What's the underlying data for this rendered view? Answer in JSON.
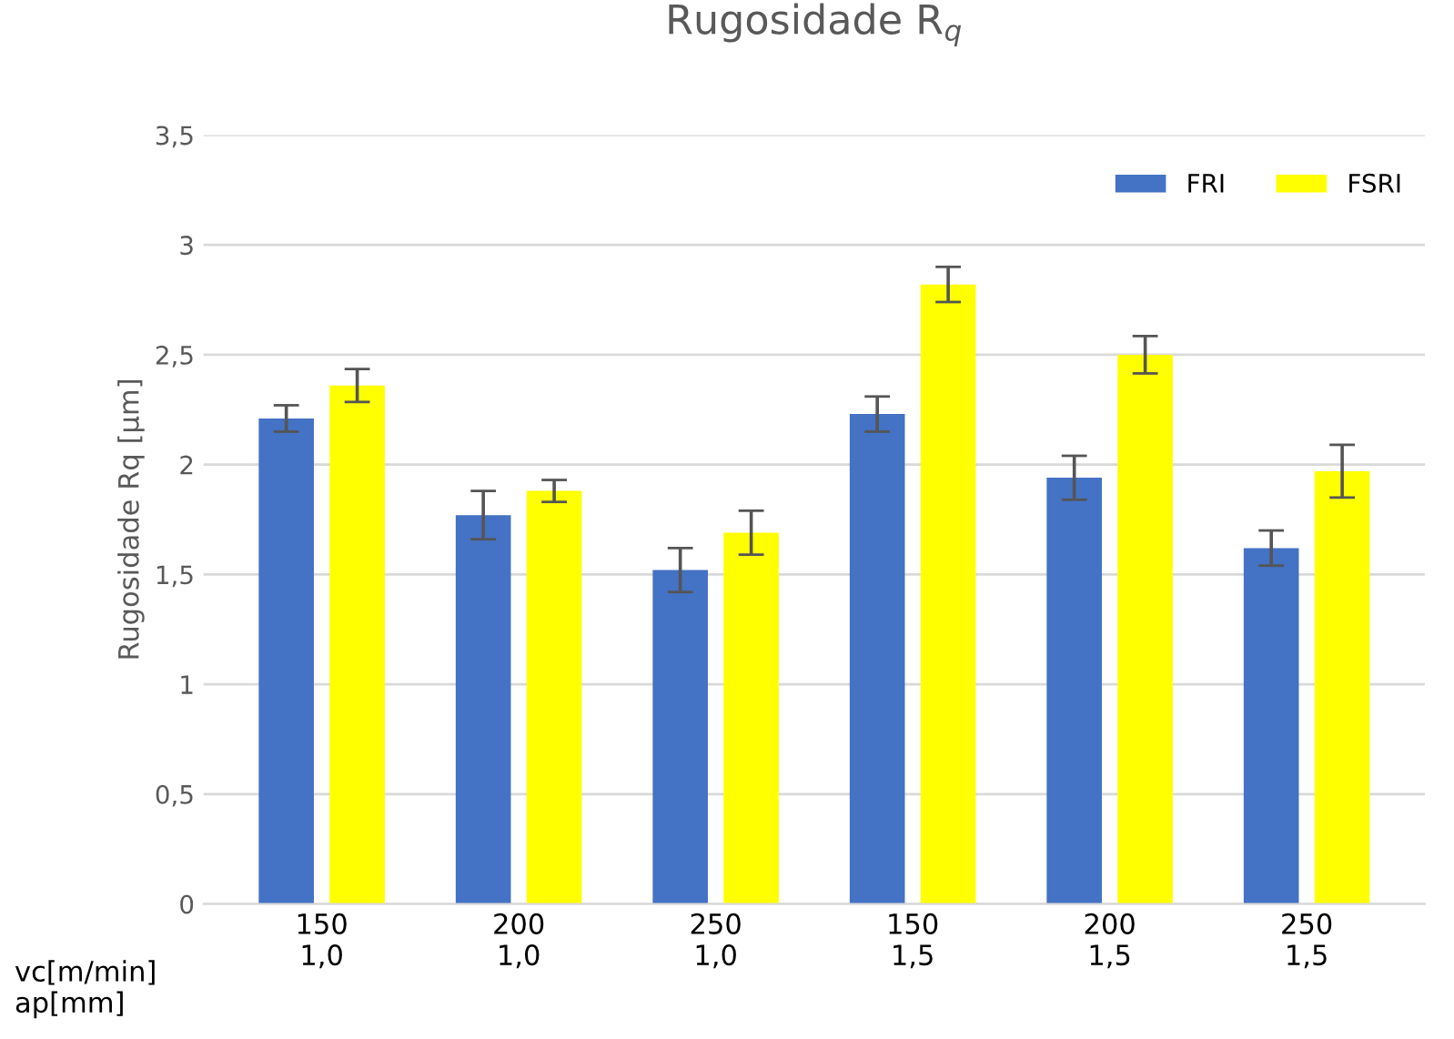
{
  "chart_data": {
    "type": "bar",
    "title": "Rugosidade R$_{q}$",
    "ylabel": "Rugosidade Rq [µm]",
    "categories": [
      "150\n1,0",
      "200\n1,0",
      "250\n1,0",
      "150\n1,5",
      "200\n1,5",
      "250\n1,5"
    ],
    "annotations": [
      "vc[m/min]\nap[mm]"
    ],
    "series": [
      {
        "name": "FRI",
        "color": "#4472c4",
        "values": [
          2.21,
          1.77,
          1.52,
          2.23,
          1.94,
          1.62
        ],
        "errors": [
          0.06,
          0.11,
          0.1,
          0.08,
          0.1,
          0.08
        ]
      },
      {
        "name": "FSRI",
        "color": "#ffff00",
        "values": [
          2.36,
          1.88,
          1.69,
          2.82,
          2.5,
          1.97
        ],
        "errors": [
          0.075,
          0.05,
          0.1,
          0.08,
          0.085,
          0.12
        ]
      }
    ],
    "ylim": [
      0,
      3.5
    ],
    "yticks": [
      0,
      {
        "value": 0.5,
        "label": "0,5"
      },
      1,
      {
        "value": 1.5,
        "label": "1,5"
      },
      2,
      {
        "value": 2.5,
        "label": "2,5"
      },
      3,
      {
        "value": 3.5,
        "label": "3,5"
      }
    ],
    "grid": "y",
    "legend": "top right"
  }
}
